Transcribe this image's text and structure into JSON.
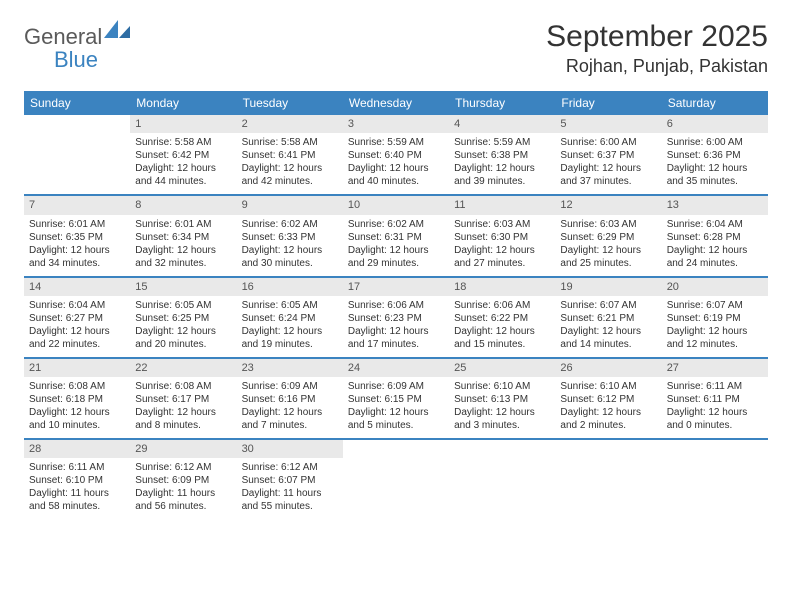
{
  "brand": {
    "name1": "General",
    "name2": "Blue"
  },
  "title": "September 2025",
  "location": "Rojhan, Punjab, Pakistan",
  "colors": {
    "header_bg": "#3b83c0",
    "daynum_bg": "#e9e9e9",
    "border": "#3b83c0",
    "text": "#333333",
    "logo_gray": "#5a5a5a"
  },
  "weekdays": [
    "Sunday",
    "Monday",
    "Tuesday",
    "Wednesday",
    "Thursday",
    "Friday",
    "Saturday"
  ],
  "calendar": {
    "type": "table",
    "first_weekday_offset": 1,
    "days": [
      {
        "n": 1,
        "sunrise": "5:58 AM",
        "sunset": "6:42 PM",
        "daylight": "12 hours and 44 minutes."
      },
      {
        "n": 2,
        "sunrise": "5:58 AM",
        "sunset": "6:41 PM",
        "daylight": "12 hours and 42 minutes."
      },
      {
        "n": 3,
        "sunrise": "5:59 AM",
        "sunset": "6:40 PM",
        "daylight": "12 hours and 40 minutes."
      },
      {
        "n": 4,
        "sunrise": "5:59 AM",
        "sunset": "6:38 PM",
        "daylight": "12 hours and 39 minutes."
      },
      {
        "n": 5,
        "sunrise": "6:00 AM",
        "sunset": "6:37 PM",
        "daylight": "12 hours and 37 minutes."
      },
      {
        "n": 6,
        "sunrise": "6:00 AM",
        "sunset": "6:36 PM",
        "daylight": "12 hours and 35 minutes."
      },
      {
        "n": 7,
        "sunrise": "6:01 AM",
        "sunset": "6:35 PM",
        "daylight": "12 hours and 34 minutes."
      },
      {
        "n": 8,
        "sunrise": "6:01 AM",
        "sunset": "6:34 PM",
        "daylight": "12 hours and 32 minutes."
      },
      {
        "n": 9,
        "sunrise": "6:02 AM",
        "sunset": "6:33 PM",
        "daylight": "12 hours and 30 minutes."
      },
      {
        "n": 10,
        "sunrise": "6:02 AM",
        "sunset": "6:31 PM",
        "daylight": "12 hours and 29 minutes."
      },
      {
        "n": 11,
        "sunrise": "6:03 AM",
        "sunset": "6:30 PM",
        "daylight": "12 hours and 27 minutes."
      },
      {
        "n": 12,
        "sunrise": "6:03 AM",
        "sunset": "6:29 PM",
        "daylight": "12 hours and 25 minutes."
      },
      {
        "n": 13,
        "sunrise": "6:04 AM",
        "sunset": "6:28 PM",
        "daylight": "12 hours and 24 minutes."
      },
      {
        "n": 14,
        "sunrise": "6:04 AM",
        "sunset": "6:27 PM",
        "daylight": "12 hours and 22 minutes."
      },
      {
        "n": 15,
        "sunrise": "6:05 AM",
        "sunset": "6:25 PM",
        "daylight": "12 hours and 20 minutes."
      },
      {
        "n": 16,
        "sunrise": "6:05 AM",
        "sunset": "6:24 PM",
        "daylight": "12 hours and 19 minutes."
      },
      {
        "n": 17,
        "sunrise": "6:06 AM",
        "sunset": "6:23 PM",
        "daylight": "12 hours and 17 minutes."
      },
      {
        "n": 18,
        "sunrise": "6:06 AM",
        "sunset": "6:22 PM",
        "daylight": "12 hours and 15 minutes."
      },
      {
        "n": 19,
        "sunrise": "6:07 AM",
        "sunset": "6:21 PM",
        "daylight": "12 hours and 14 minutes."
      },
      {
        "n": 20,
        "sunrise": "6:07 AM",
        "sunset": "6:19 PM",
        "daylight": "12 hours and 12 minutes."
      },
      {
        "n": 21,
        "sunrise": "6:08 AM",
        "sunset": "6:18 PM",
        "daylight": "12 hours and 10 minutes."
      },
      {
        "n": 22,
        "sunrise": "6:08 AM",
        "sunset": "6:17 PM",
        "daylight": "12 hours and 8 minutes."
      },
      {
        "n": 23,
        "sunrise": "6:09 AM",
        "sunset": "6:16 PM",
        "daylight": "12 hours and 7 minutes."
      },
      {
        "n": 24,
        "sunrise": "6:09 AM",
        "sunset": "6:15 PM",
        "daylight": "12 hours and 5 minutes."
      },
      {
        "n": 25,
        "sunrise": "6:10 AM",
        "sunset": "6:13 PM",
        "daylight": "12 hours and 3 minutes."
      },
      {
        "n": 26,
        "sunrise": "6:10 AM",
        "sunset": "6:12 PM",
        "daylight": "12 hours and 2 minutes."
      },
      {
        "n": 27,
        "sunrise": "6:11 AM",
        "sunset": "6:11 PM",
        "daylight": "12 hours and 0 minutes."
      },
      {
        "n": 28,
        "sunrise": "6:11 AM",
        "sunset": "6:10 PM",
        "daylight": "11 hours and 58 minutes."
      },
      {
        "n": 29,
        "sunrise": "6:12 AM",
        "sunset": "6:09 PM",
        "daylight": "11 hours and 56 minutes."
      },
      {
        "n": 30,
        "sunrise": "6:12 AM",
        "sunset": "6:07 PM",
        "daylight": "11 hours and 55 minutes."
      }
    ]
  },
  "labels": {
    "sunrise_prefix": "Sunrise: ",
    "sunset_prefix": "Sunset: ",
    "daylight_prefix": "Daylight: "
  }
}
